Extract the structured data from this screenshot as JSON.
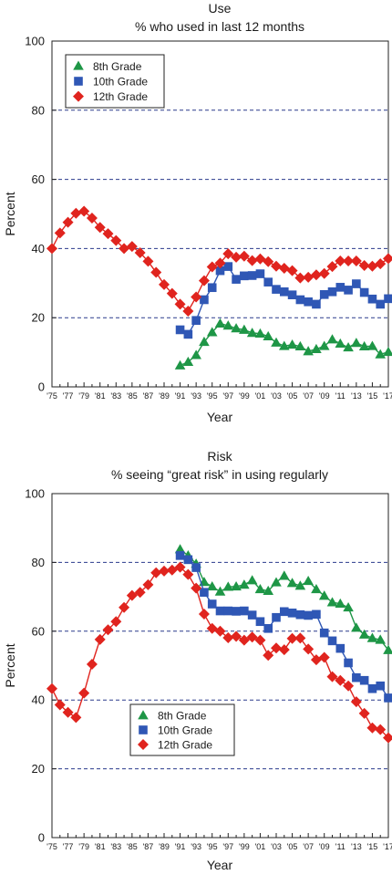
{
  "chart_data": [
    {
      "type": "line",
      "title": "Use",
      "subtitle": "% who used in last 12 months",
      "xlabel": "Year",
      "ylabel": "Percent",
      "ylim": [
        0,
        100
      ],
      "yticks": [
        0,
        20,
        40,
        60,
        80,
        100
      ],
      "xlim": [
        1975,
        2017
      ],
      "xtick_labels": [
        "'75",
        "'77",
        "'79",
        "'81",
        "'83",
        "'85",
        "'87",
        "'89",
        "'91",
        "'93",
        "'95",
        "'97",
        "'99",
        "'01",
        "'03",
        "'05",
        "'07",
        "'09",
        "'11",
        "'13",
        "'15",
        "'17"
      ],
      "grid": "horizontal dashed",
      "legend_position": "top-left",
      "series": [
        {
          "name": "8th Grade",
          "color": "#1e9646",
          "marker": "triangle",
          "x": [
            1991,
            1992,
            1993,
            1994,
            1995,
            1996,
            1997,
            1998,
            1999,
            2000,
            2001,
            2002,
            2003,
            2004,
            2005,
            2006,
            2007,
            2008,
            2009,
            2010,
            2011,
            2012,
            2013,
            2014,
            2015,
            2016,
            2017
          ],
          "values": [
            6.2,
            7.2,
            9.2,
            13.0,
            15.8,
            18.3,
            17.7,
            16.9,
            16.5,
            15.6,
            15.4,
            14.6,
            12.8,
            11.8,
            12.2,
            11.7,
            10.3,
            10.9,
            11.8,
            13.7,
            12.5,
            11.4,
            12.7,
            11.7,
            11.8,
            9.4,
            10.1
          ]
        },
        {
          "name": "10th Grade",
          "color": "#2f57b5",
          "marker": "square",
          "x": [
            1991,
            1992,
            1993,
            1994,
            1995,
            1996,
            1997,
            1998,
            1999,
            2000,
            2001,
            2002,
            2003,
            2004,
            2005,
            2006,
            2007,
            2008,
            2009,
            2010,
            2011,
            2012,
            2013,
            2014,
            2015,
            2016,
            2017
          ],
          "values": [
            16.5,
            15.2,
            19.2,
            25.2,
            28.7,
            33.6,
            34.8,
            31.1,
            32.1,
            32.2,
            32.7,
            30.3,
            28.2,
            27.5,
            26.6,
            25.2,
            24.6,
            23.9,
            26.7,
            27.5,
            28.8,
            28.0,
            29.8,
            27.3,
            25.4,
            23.9,
            25.5
          ]
        },
        {
          "name": "12th Grade",
          "color": "#e0241e",
          "marker": "diamond",
          "x": [
            1975,
            1976,
            1977,
            1978,
            1979,
            1980,
            1981,
            1982,
            1983,
            1984,
            1985,
            1986,
            1987,
            1988,
            1989,
            1990,
            1991,
            1992,
            1993,
            1994,
            1995,
            1996,
            1997,
            1998,
            1999,
            2000,
            2001,
            2002,
            2003,
            2004,
            2005,
            2006,
            2007,
            2008,
            2009,
            2010,
            2011,
            2012,
            2013,
            2014,
            2015,
            2016,
            2017
          ],
          "values": [
            40.0,
            44.5,
            47.6,
            50.2,
            50.8,
            48.8,
            46.1,
            44.3,
            42.3,
            40.0,
            40.6,
            38.8,
            36.3,
            33.1,
            29.6,
            27.0,
            23.9,
            21.9,
            26.0,
            30.7,
            34.7,
            35.8,
            38.5,
            37.5,
            37.8,
            36.5,
            37.0,
            36.2,
            34.9,
            34.3,
            33.6,
            31.5,
            31.7,
            32.4,
            32.8,
            34.8,
            36.4,
            36.4,
            36.4,
            35.1,
            34.9,
            35.6,
            37.1
          ]
        }
      ]
    },
    {
      "type": "line",
      "title": "Risk",
      "subtitle": "% seeing “great risk” in using regularly",
      "xlabel": "Year",
      "ylabel": "Percent",
      "ylim": [
        0,
        100
      ],
      "yticks": [
        0,
        20,
        40,
        60,
        80,
        100
      ],
      "xlim": [
        1975,
        2017
      ],
      "xtick_labels": [
        "'75",
        "'77",
        "'79",
        "'81",
        "'83",
        "'85",
        "'87",
        "'89",
        "'91",
        "'93",
        "'95",
        "'97",
        "'99",
        "'01",
        "'03",
        "'05",
        "'07",
        "'09",
        "'11",
        "'13",
        "'15",
        "'17"
      ],
      "grid": "horizontal dashed",
      "legend_position": "bottom-left",
      "series": [
        {
          "name": "8th Grade",
          "color": "#1e9646",
          "marker": "triangle",
          "x": [
            1991,
            1992,
            1993,
            1994,
            1995,
            1996,
            1997,
            1998,
            1999,
            2000,
            2001,
            2002,
            2003,
            2004,
            2005,
            2006,
            2007,
            2008,
            2009,
            2010,
            2011,
            2012,
            2013,
            2014,
            2015,
            2016,
            2017
          ],
          "values": [
            83.8,
            82.0,
            79.6,
            74.3,
            73.0,
            71.5,
            72.9,
            73.0,
            73.5,
            74.8,
            72.2,
            71.7,
            74.2,
            76.1,
            74.0,
            73.2,
            74.6,
            72.2,
            70.3,
            68.4,
            68.0,
            66.9,
            61.0,
            59.0,
            58.0,
            57.5,
            54.5
          ]
        },
        {
          "name": "10th Grade",
          "color": "#2f57b5",
          "marker": "square",
          "x": [
            1991,
            1992,
            1993,
            1994,
            1995,
            1996,
            1997,
            1998,
            1999,
            2000,
            2001,
            2002,
            2003,
            2004,
            2005,
            2006,
            2007,
            2008,
            2009,
            2010,
            2011,
            2012,
            2013,
            2014,
            2015,
            2016,
            2017
          ],
          "values": [
            82.0,
            80.8,
            78.5,
            71.3,
            67.9,
            65.9,
            65.9,
            65.8,
            65.9,
            64.7,
            62.8,
            60.8,
            64.0,
            65.7,
            65.3,
            64.8,
            64.6,
            64.9,
            59.5,
            57.2,
            55.0,
            50.8,
            46.5,
            45.7,
            43.3,
            44.1,
            40.6
          ]
        },
        {
          "name": "12th Grade",
          "color": "#e0241e",
          "marker": "diamond",
          "x": [
            1975,
            1976,
            1977,
            1978,
            1979,
            1980,
            1981,
            1982,
            1983,
            1984,
            1985,
            1986,
            1987,
            1988,
            1989,
            1990,
            1991,
            1992,
            1993,
            1994,
            1995,
            1996,
            1997,
            1998,
            1999,
            2000,
            2001,
            2002,
            2003,
            2004,
            2005,
            2006,
            2007,
            2008,
            2009,
            2010,
            2011,
            2012,
            2013,
            2014,
            2015,
            2016,
            2017
          ],
          "values": [
            43.3,
            38.6,
            36.4,
            34.9,
            42.0,
            50.4,
            57.6,
            60.4,
            62.8,
            66.9,
            70.4,
            71.3,
            73.5,
            77.0,
            77.5,
            77.8,
            78.6,
            76.5,
            72.5,
            65.0,
            60.8,
            60.0,
            58.1,
            58.5,
            57.4,
            58.3,
            57.4,
            53.0,
            55.1,
            54.6,
            57.9,
            58.0,
            54.8,
            51.7,
            52.4,
            46.8,
            45.7,
            44.1,
            39.5,
            36.1,
            31.9,
            31.4,
            29.0
          ]
        }
      ]
    }
  ]
}
